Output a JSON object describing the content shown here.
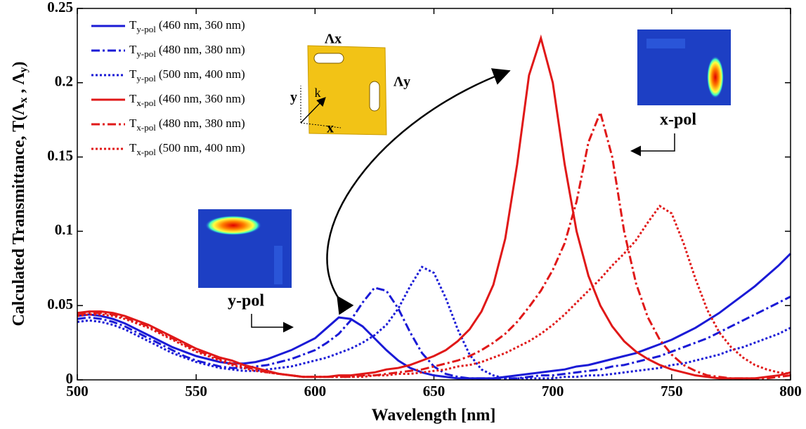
{
  "chart_data": {
    "type": "line",
    "ylabel_parts": [
      "Calculated Transmittance, T(Λ",
      "x",
      " , Λ",
      "y",
      ")"
    ],
    "xlabel": "Wavelength [nm]",
    "xlim": [
      500,
      800
    ],
    "ylim": [
      0,
      0.25
    ],
    "xticks": [
      500,
      550,
      600,
      650,
      700,
      750,
      800
    ],
    "yticks": [
      0,
      0.05,
      0.1,
      0.15,
      0.2,
      0.25
    ],
    "annotations": {
      "y_pol": "y-pol",
      "x_pol": "x-pol",
      "lambda_x": "Λx",
      "lambda_y": "Λy",
      "k": "k",
      "axis_x": "x",
      "axis_y": "y"
    },
    "x": [
      500,
      505,
      510,
      515,
      520,
      525,
      530,
      535,
      540,
      545,
      550,
      555,
      560,
      565,
      570,
      575,
      580,
      585,
      590,
      595,
      600,
      605,
      610,
      615,
      620,
      625,
      630,
      635,
      640,
      645,
      650,
      655,
      660,
      665,
      670,
      675,
      680,
      685,
      690,
      695,
      700,
      705,
      710,
      715,
      720,
      725,
      730,
      735,
      740,
      745,
      750,
      755,
      760,
      765,
      770,
      775,
      780,
      785,
      790,
      795,
      800
    ],
    "series": [
      {
        "symbol": "T",
        "subscript": "y-pol",
        "name": "(460 nm, 360 nm)",
        "color": "#1a1ad6",
        "dash": "solid",
        "values": [
          0.043,
          0.044,
          0.043,
          0.041,
          0.038,
          0.034,
          0.03,
          0.026,
          0.022,
          0.019,
          0.016,
          0.014,
          0.012,
          0.011,
          0.011,
          0.012,
          0.014,
          0.017,
          0.02,
          0.024,
          0.028,
          0.035,
          0.042,
          0.041,
          0.036,
          0.028,
          0.02,
          0.013,
          0.008,
          0.005,
          0.003,
          0.002,
          0.001,
          0.001,
          0.001,
          0.001,
          0.002,
          0.003,
          0.004,
          0.005,
          0.006,
          0.007,
          0.009,
          0.01,
          0.012,
          0.014,
          0.016,
          0.018,
          0.021,
          0.024,
          0.027,
          0.031,
          0.035,
          0.04,
          0.045,
          0.051,
          0.057,
          0.063,
          0.07,
          0.077,
          0.085
        ]
      },
      {
        "symbol": "T",
        "subscript": "y-pol",
        "name": "(480 nm, 380 nm)",
        "color": "#1a1ad6",
        "dash": "dashdot",
        "values": [
          0.041,
          0.042,
          0.041,
          0.039,
          0.036,
          0.032,
          0.028,
          0.024,
          0.02,
          0.016,
          0.013,
          0.011,
          0.009,
          0.008,
          0.008,
          0.009,
          0.01,
          0.012,
          0.014,
          0.017,
          0.02,
          0.025,
          0.031,
          0.04,
          0.052,
          0.062,
          0.06,
          0.048,
          0.032,
          0.018,
          0.009,
          0.004,
          0.002,
          0.001,
          0.001,
          0.001,
          0.001,
          0.001,
          0.002,
          0.003,
          0.003,
          0.004,
          0.005,
          0.006,
          0.007,
          0.009,
          0.01,
          0.012,
          0.014,
          0.016,
          0.019,
          0.022,
          0.025,
          0.028,
          0.032,
          0.036,
          0.04,
          0.044,
          0.048,
          0.052,
          0.056
        ]
      },
      {
        "symbol": "T",
        "subscript": "y-pol",
        "name": "(500 nm, 400 nm)",
        "color": "#1a1ad6",
        "dash": "dotted",
        "values": [
          0.039,
          0.04,
          0.039,
          0.037,
          0.034,
          0.03,
          0.026,
          0.022,
          0.018,
          0.015,
          0.012,
          0.01,
          0.008,
          0.007,
          0.006,
          0.006,
          0.007,
          0.008,
          0.009,
          0.011,
          0.013,
          0.015,
          0.018,
          0.021,
          0.025,
          0.03,
          0.037,
          0.048,
          0.063,
          0.076,
          0.072,
          0.055,
          0.034,
          0.017,
          0.007,
          0.003,
          0.001,
          0.001,
          0.001,
          0.001,
          0.001,
          0.002,
          0.002,
          0.003,
          0.003,
          0.004,
          0.005,
          0.006,
          0.007,
          0.008,
          0.01,
          0.011,
          0.013,
          0.015,
          0.017,
          0.02,
          0.022,
          0.025,
          0.028,
          0.031,
          0.035
        ]
      },
      {
        "symbol": "T",
        "subscript": "x-pol",
        "name": "(460 nm, 360 nm)",
        "color": "#e01818",
        "dash": "solid",
        "values": [
          0.045,
          0.046,
          0.046,
          0.045,
          0.043,
          0.04,
          0.037,
          0.033,
          0.029,
          0.025,
          0.021,
          0.018,
          0.015,
          0.013,
          0.01,
          0.008,
          0.006,
          0.004,
          0.003,
          0.002,
          0.002,
          0.002,
          0.003,
          0.003,
          0.004,
          0.005,
          0.007,
          0.008,
          0.01,
          0.013,
          0.016,
          0.02,
          0.026,
          0.034,
          0.046,
          0.064,
          0.095,
          0.145,
          0.205,
          0.23,
          0.2,
          0.145,
          0.1,
          0.07,
          0.05,
          0.036,
          0.026,
          0.019,
          0.014,
          0.01,
          0.007,
          0.005,
          0.003,
          0.002,
          0.001,
          0.001,
          0.001,
          0.001,
          0.002,
          0.003,
          0.005
        ]
      },
      {
        "symbol": "T",
        "subscript": "x-pol",
        "name": "(480 nm, 380 nm)",
        "color": "#e01818",
        "dash": "dashdot",
        "values": [
          0.044,
          0.045,
          0.045,
          0.044,
          0.042,
          0.039,
          0.036,
          0.032,
          0.028,
          0.024,
          0.02,
          0.017,
          0.014,
          0.011,
          0.009,
          0.007,
          0.005,
          0.004,
          0.003,
          0.002,
          0.002,
          0.002,
          0.002,
          0.002,
          0.003,
          0.003,
          0.004,
          0.005,
          0.006,
          0.007,
          0.009,
          0.011,
          0.013,
          0.016,
          0.02,
          0.025,
          0.031,
          0.039,
          0.049,
          0.06,
          0.074,
          0.092,
          0.12,
          0.16,
          0.18,
          0.15,
          0.1,
          0.065,
          0.042,
          0.027,
          0.017,
          0.01,
          0.006,
          0.003,
          0.002,
          0.001,
          0.001,
          0.001,
          0.001,
          0.002,
          0.003
        ]
      },
      {
        "symbol": "T",
        "subscript": "x-pol",
        "name": "(500 nm, 400 nm)",
        "color": "#e01818",
        "dash": "dotted",
        "values": [
          0.043,
          0.044,
          0.044,
          0.043,
          0.041,
          0.038,
          0.035,
          0.031,
          0.027,
          0.023,
          0.019,
          0.016,
          0.013,
          0.01,
          0.008,
          0.006,
          0.005,
          0.004,
          0.003,
          0.002,
          0.002,
          0.002,
          0.002,
          0.002,
          0.002,
          0.003,
          0.003,
          0.004,
          0.004,
          0.005,
          0.006,
          0.007,
          0.009,
          0.01,
          0.012,
          0.015,
          0.018,
          0.022,
          0.026,
          0.031,
          0.037,
          0.044,
          0.052,
          0.06,
          0.068,
          0.077,
          0.085,
          0.094,
          0.106,
          0.117,
          0.112,
          0.092,
          0.068,
          0.047,
          0.032,
          0.022,
          0.015,
          0.01,
          0.007,
          0.005,
          0.004
        ]
      }
    ]
  }
}
